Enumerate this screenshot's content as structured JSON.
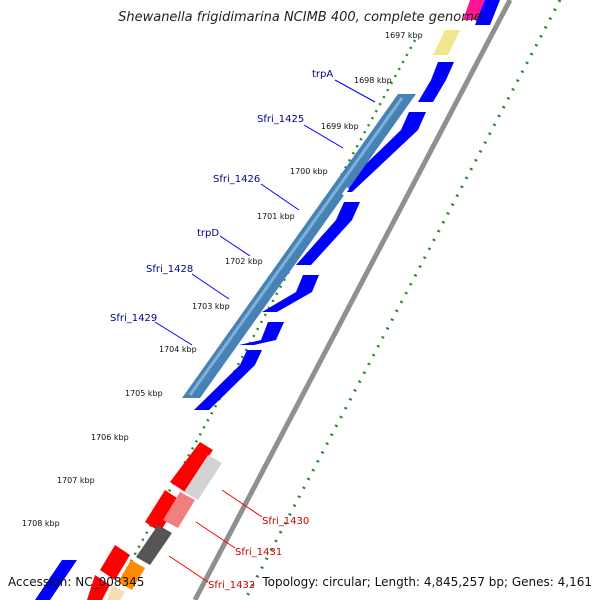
{
  "title": "Shewanella frigidimarina NCIMB 400, complete genome",
  "footer": {
    "accession": "Accession: NC_008345",
    "summary": "Topology: circular; Length: 4,845,257 bp; Genes: 4,161"
  },
  "ruler": {
    "unit": "kbp",
    "ticks": [
      "1697 kbp",
      "1698 kbp",
      "1699 kbp",
      "1700 kbp",
      "1701 kbp",
      "1702 kbp",
      "1703 kbp",
      "1704 kbp",
      "1705 kbp",
      "1706 kbp",
      "1707 kbp",
      "1708 kbp"
    ]
  },
  "gene_labels_upper": [
    "trpA",
    "Sfri_1425",
    "Sfri_1426",
    "trpD",
    "Sfri_1428",
    "Sfri_1429"
  ],
  "gene_labels_lower": [
    "Sfri_1430",
    "Sfri_1431",
    "Sfri_1432"
  ],
  "colors": {
    "label_upper": "#00008b",
    "label_lower": "#cc0000",
    "cds_forward": "#0000ff",
    "operon_band": "#4682b4",
    "cds_red": "#ff0000",
    "gc_skew_dots": "#228b22",
    "backbone": "#808080"
  }
}
